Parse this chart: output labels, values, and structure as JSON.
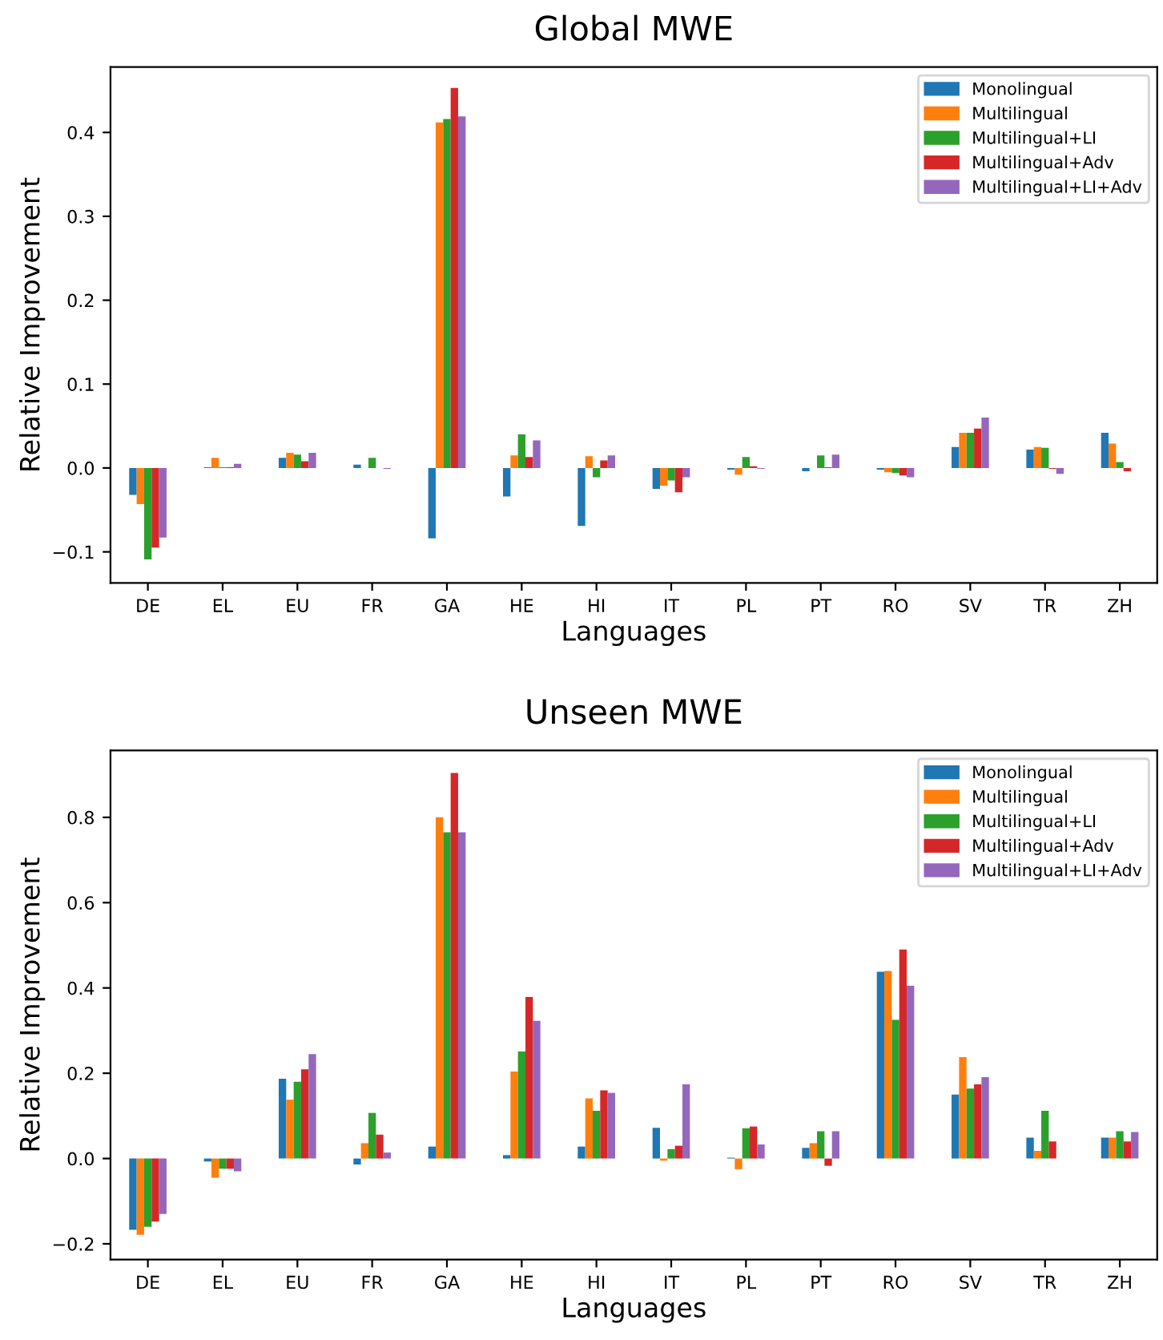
{
  "chart_data": [
    {
      "type": "bar",
      "title": "Global MWE",
      "xlabel": "Languages",
      "ylabel": "Relative Improvement",
      "categories": [
        "DE",
        "EL",
        "EU",
        "FR",
        "GA",
        "HE",
        "HI",
        "IT",
        "PL",
        "PT",
        "RO",
        "SV",
        "TR",
        "ZH"
      ],
      "ylim": [
        -0.137,
        0.478
      ],
      "yticks": [
        {
          "value": -0.1,
          "label": "−0.1"
        },
        {
          "value": 0,
          "label": "0.0"
        },
        0.1,
        0.2,
        0.3,
        0.4
      ],
      "legend": "top right",
      "grid": false,
      "series": [
        {
          "name": "Monolingual",
          "color": "#1f77b4",
          "values": [
            -0.032,
            0.001,
            0.012,
            0.004,
            -0.084,
            -0.034,
            -0.069,
            -0.025,
            -0.002,
            -0.004,
            -0.002,
            0.025,
            0.022,
            0.042
          ]
        },
        {
          "name": "Multilingual",
          "color": "#ff7f0e",
          "values": [
            -0.043,
            0.012,
            0.018,
            null,
            0.412,
            0.015,
            0.014,
            -0.021,
            -0.008,
            null,
            -0.005,
            0.042,
            0.025,
            0.029
          ]
        },
        {
          "name": "Multilingual+LI",
          "color": "#2ca02c",
          "values": [
            -0.109,
            0.001,
            0.016,
            0.012,
            0.416,
            0.04,
            -0.011,
            -0.015,
            0.013,
            0.015,
            -0.006,
            0.042,
            0.024,
            0.007
          ]
        },
        {
          "name": "Multilingual+Adv",
          "color": "#d62728",
          "values": [
            -0.095,
            0.001,
            0.008,
            null,
            0.453,
            0.013,
            0.009,
            -0.029,
            0.002,
            0.001,
            -0.009,
            0.047,
            -0.001,
            -0.004
          ]
        },
        {
          "name": "Multilingual+LI+Adv",
          "color": "#9467bd",
          "values": [
            -0.083,
            0.005,
            0.018,
            -0.001,
            0.419,
            0.033,
            0.015,
            -0.011,
            -0.001,
            0.016,
            -0.011,
            0.06,
            -0.007,
            null
          ]
        }
      ]
    },
    {
      "type": "bar",
      "title": "Unseen MWE",
      "xlabel": "Languages",
      "ylabel": "Relative Improvement",
      "categories": [
        "DE",
        "EL",
        "EU",
        "FR",
        "GA",
        "HE",
        "HI",
        "IT",
        "PL",
        "PT",
        "RO",
        "SV",
        "TR",
        "ZH"
      ],
      "ylim": [
        -0.237,
        0.957
      ],
      "yticks": [
        {
          "value": -0.2,
          "label": "−0.2"
        },
        {
          "value": 0,
          "label": "0.0"
        },
        0.2,
        0.4,
        0.6,
        0.8
      ],
      "legend": "top right",
      "grid": false,
      "series": [
        {
          "name": "Monolingual",
          "color": "#1f77b4",
          "values": [
            -0.167,
            -0.007,
            0.187,
            -0.014,
            0.028,
            0.008,
            0.028,
            0.072,
            0.002,
            0.025,
            0.438,
            0.15,
            0.049,
            0.049
          ]
        },
        {
          "name": "Multilingual",
          "color": "#ff7f0e",
          "values": [
            -0.179,
            -0.045,
            0.138,
            0.036,
            0.8,
            0.204,
            0.141,
            -0.005,
            -0.025,
            0.036,
            0.44,
            0.238,
            0.018,
            0.049
          ]
        },
        {
          "name": "Multilingual+LI",
          "color": "#2ca02c",
          "values": [
            -0.16,
            -0.024,
            0.18,
            0.107,
            0.765,
            0.251,
            0.112,
            0.022,
            0.071,
            0.064,
            0.325,
            0.164,
            0.112,
            0.064
          ]
        },
        {
          "name": "Multilingual+Adv",
          "color": "#d62728",
          "values": [
            -0.148,
            -0.024,
            0.209,
            0.056,
            0.904,
            0.379,
            0.16,
            0.03,
            0.075,
            -0.017,
            0.49,
            0.174,
            0.04,
            0.04
          ]
        },
        {
          "name": "Multilingual+LI+Adv",
          "color": "#9467bd",
          "values": [
            -0.13,
            -0.03,
            0.245,
            0.014,
            0.765,
            0.323,
            0.154,
            0.174,
            0.033,
            0.064,
            0.405,
            0.191,
            null,
            0.062
          ]
        }
      ]
    }
  ]
}
